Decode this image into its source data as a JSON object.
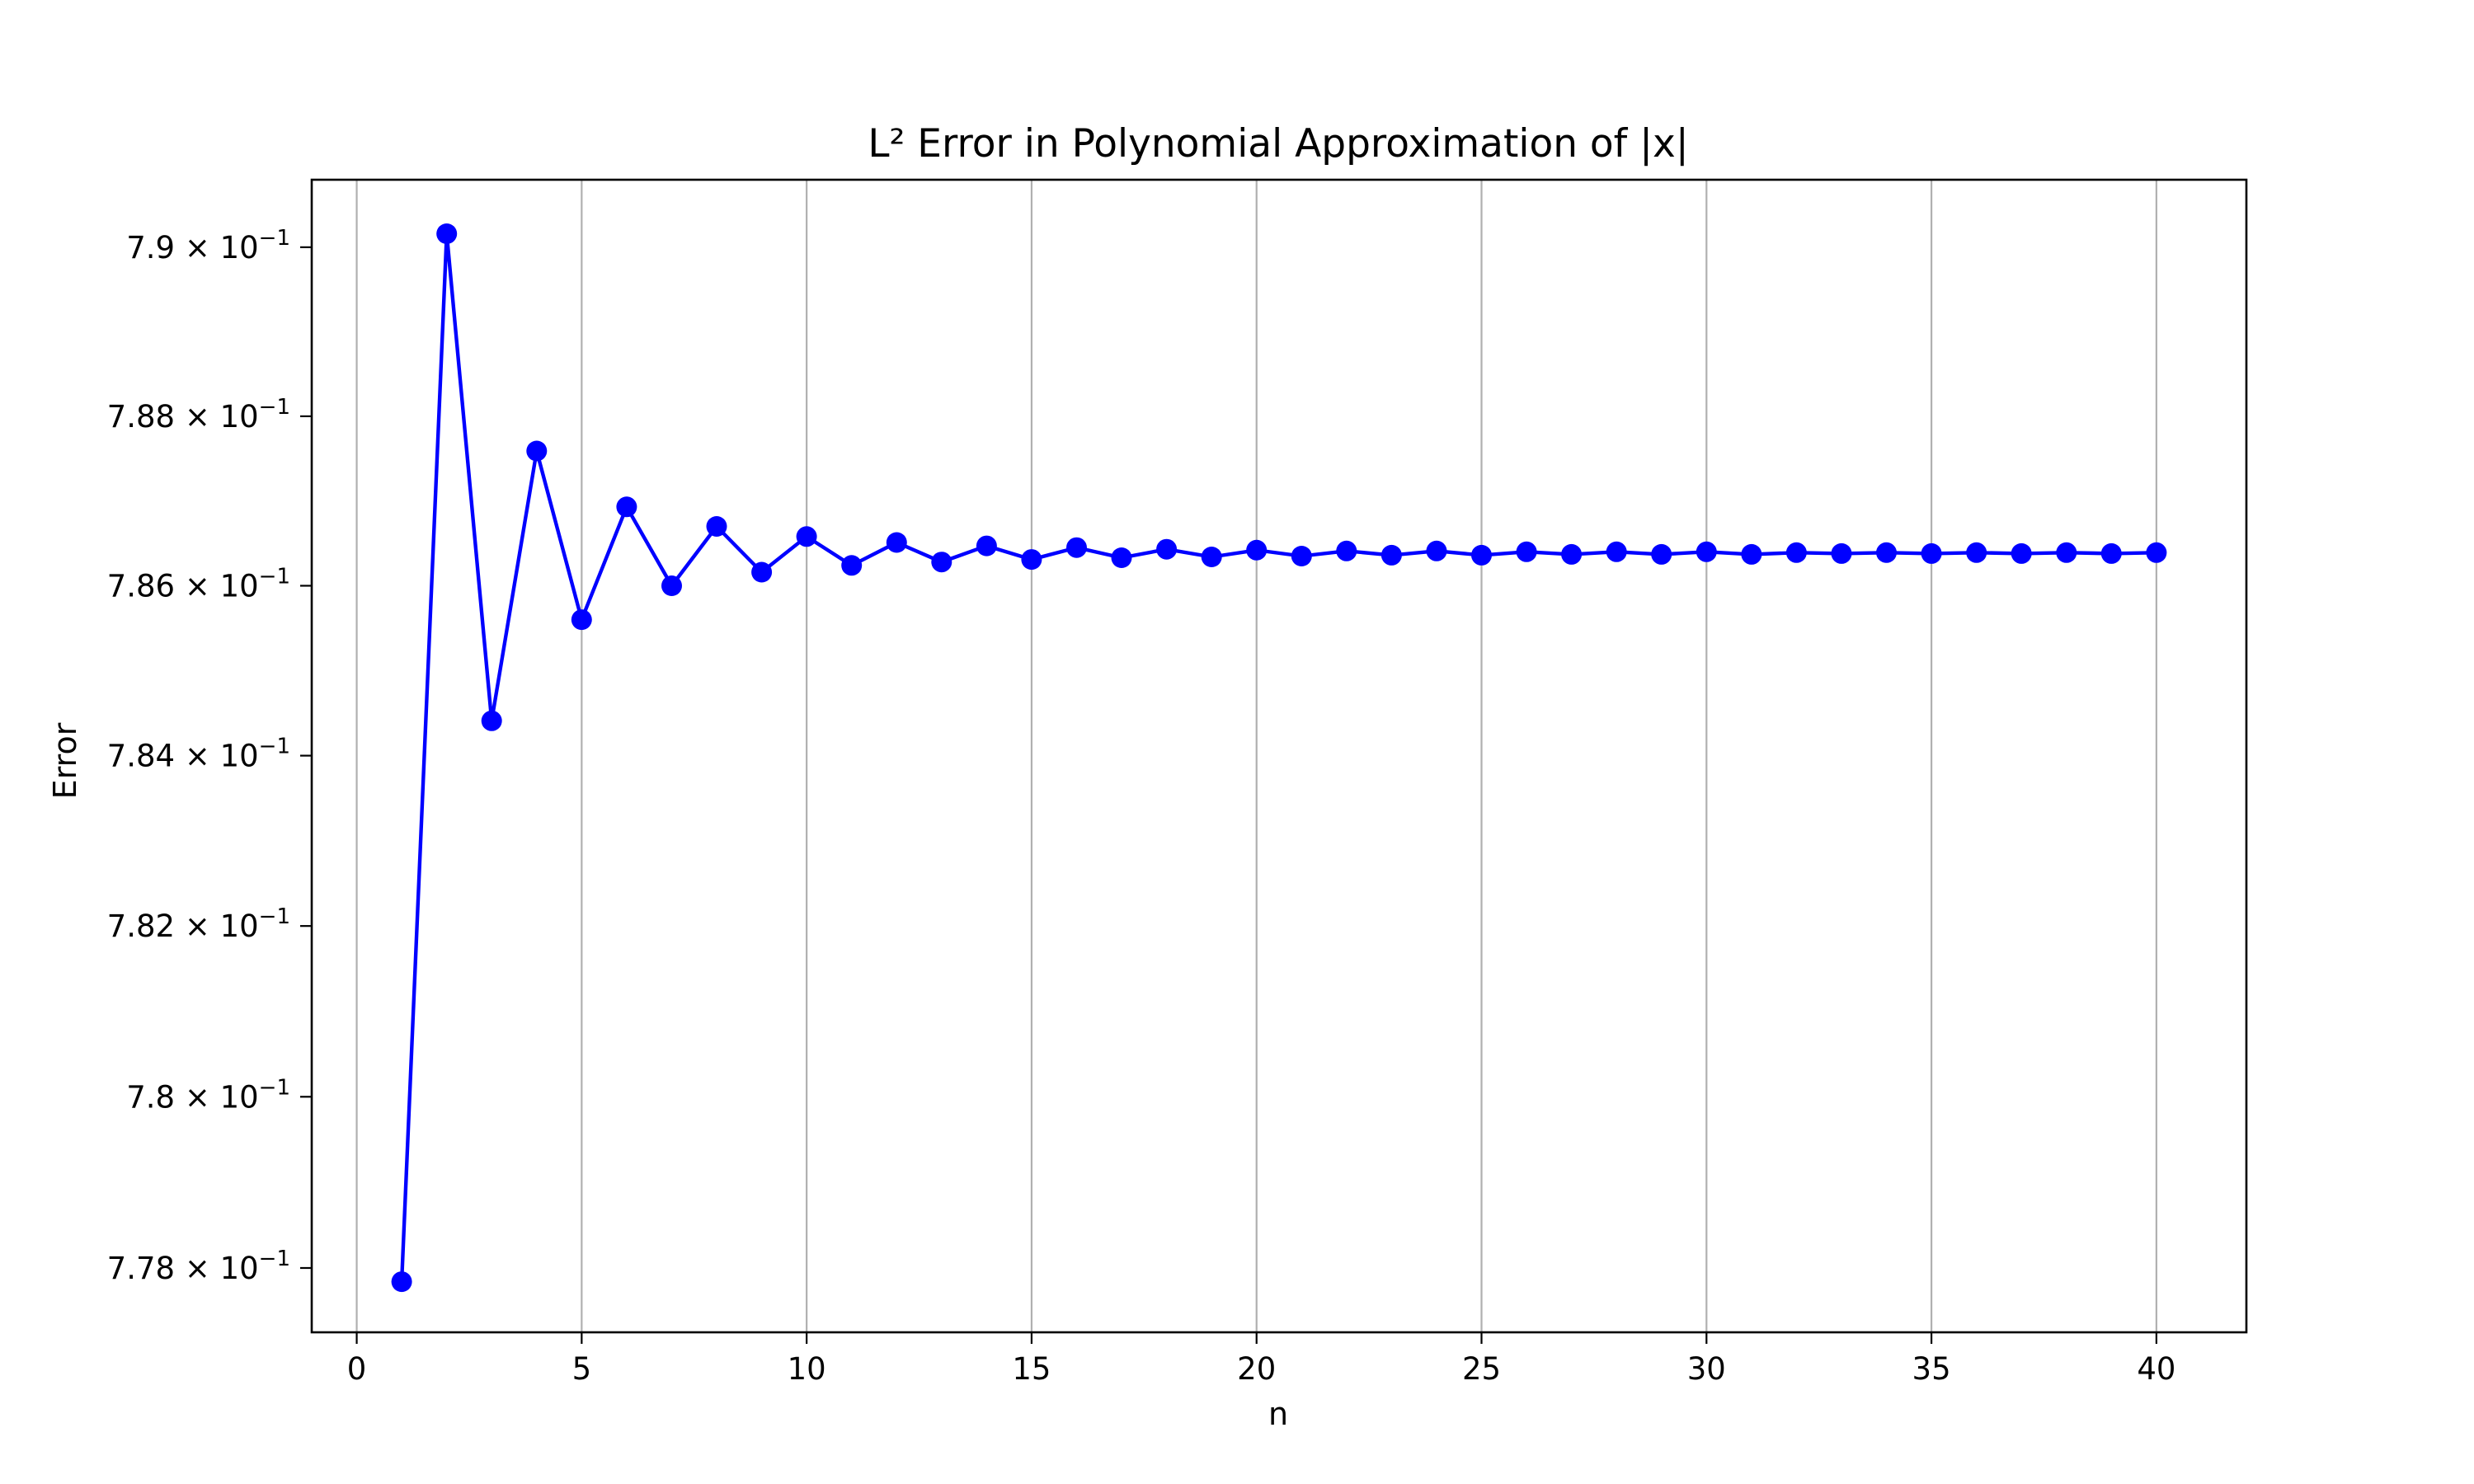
{
  "chart_data": {
    "type": "line",
    "title": "L² Error in Polynomial Approximation of |x|",
    "xlabel": "n",
    "ylabel": "Error",
    "xlim": [
      -1,
      42
    ],
    "ylim": [
      0.77725,
      0.7908
    ],
    "yscale": "log",
    "grid": "x-only",
    "x_ticks": [
      0,
      5,
      10,
      15,
      20,
      25,
      30,
      35,
      40
    ],
    "x_tick_labels": [
      "0",
      "5",
      "10",
      "15",
      "20",
      "25",
      "30",
      "35",
      "40"
    ],
    "y_ticks": [
      0.778,
      0.78,
      0.782,
      0.784,
      0.786,
      0.788,
      0.79
    ],
    "y_tick_labels": [
      {
        "mantissa": "7.78",
        "exponent": "−1"
      },
      {
        "mantissa": "7.8",
        "exponent": "−1"
      },
      {
        "mantissa": "7.82",
        "exponent": "−1"
      },
      {
        "mantissa": "7.84",
        "exponent": "−1"
      },
      {
        "mantissa": "7.86",
        "exponent": "−1"
      },
      {
        "mantissa": "7.88",
        "exponent": "−1"
      },
      {
        "mantissa": "7.9",
        "exponent": "−1"
      }
    ],
    "times_symbol": "×",
    "base_label": "10",
    "series": [
      {
        "color": "#0000ff",
        "marker": "circle",
        "x": [
          1,
          2,
          3,
          4,
          5,
          6,
          7,
          8,
          9,
          10,
          11,
          12,
          13,
          14,
          15,
          16,
          17,
          18,
          19,
          20,
          21,
          22,
          23,
          24,
          25,
          26,
          27,
          28,
          29,
          30,
          31,
          32,
          33,
          34,
          35,
          36,
          37,
          38,
          39,
          40
        ],
        "y": [
          0.77784,
          0.79016,
          0.78441,
          0.78759,
          0.7856,
          0.78693,
          0.786,
          0.7867,
          0.78616,
          0.78658,
          0.78624,
          0.78651,
          0.78628,
          0.78647,
          0.78631,
          0.78645,
          0.78633,
          0.78643,
          0.78634,
          0.78642,
          0.78635,
          0.78641,
          0.78636,
          0.78641,
          0.78636,
          0.7864,
          0.78637,
          0.7864,
          0.78637,
          0.7864,
          0.78637,
          0.78639,
          0.78638,
          0.78639,
          0.78638,
          0.78639,
          0.78638,
          0.78639,
          0.78638,
          0.78639
        ]
      }
    ]
  }
}
